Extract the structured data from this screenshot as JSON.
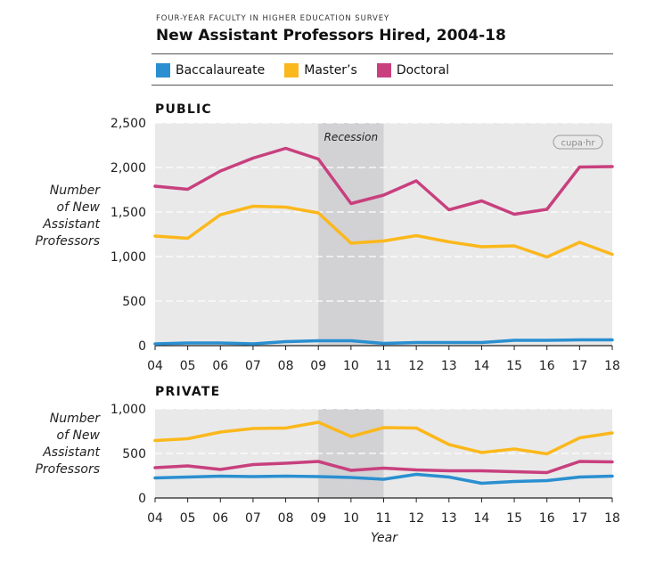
{
  "header": {
    "supertitle": "FOUR-YEAR FACULTY IN HIGHER EDUCATION SURVEY",
    "title": "New Assistant Professors Hired, 2004-18"
  },
  "legend": [
    {
      "label": "Baccalaureate",
      "color": "#2a8fd0"
    },
    {
      "label": "Master’s",
      "color": "#fbb81c"
    },
    {
      "label": "Doctoral",
      "color": "#c8407e"
    }
  ],
  "logo_text": "cupa·hr",
  "recession_label": "Recession",
  "ylabel_lines": [
    "Number",
    "of New",
    "Assistant",
    "Professors"
  ],
  "xlabel": "Year",
  "chart_data": [
    {
      "type": "line",
      "title": "PUBLIC",
      "x": [
        "04",
        "05",
        "06",
        "07",
        "08",
        "09",
        "10",
        "11",
        "12",
        "13",
        "14",
        "15",
        "16",
        "17",
        "18"
      ],
      "ylim": [
        0,
        2500
      ],
      "yticks": [
        "0",
        "500",
        "1,000",
        "1,500",
        "2,000",
        "2,500"
      ],
      "ytick_values": [
        0,
        500,
        1000,
        1500,
        2000,
        2500
      ],
      "shaded_range": [
        "09",
        "11"
      ],
      "series": [
        {
          "name": "Baccalaureate",
          "color": "#2a8fd0",
          "values": [
            20,
            30,
            30,
            20,
            45,
            55,
            55,
            25,
            35,
            35,
            35,
            60,
            60,
            65,
            65
          ]
        },
        {
          "name": "Master’s",
          "color": "#fbb81c",
          "values": [
            1230,
            1205,
            1470,
            1565,
            1555,
            1490,
            1150,
            1175,
            1235,
            1165,
            1110,
            1120,
            995,
            1160,
            1025
          ]
        },
        {
          "name": "Doctoral",
          "color": "#c8407e",
          "values": [
            1790,
            1755,
            1960,
            2105,
            2215,
            2095,
            1595,
            1690,
            1850,
            1525,
            1625,
            1475,
            1530,
            2005,
            2010
          ]
        }
      ]
    },
    {
      "type": "line",
      "title": "PRIVATE",
      "x": [
        "04",
        "05",
        "06",
        "07",
        "08",
        "09",
        "10",
        "11",
        "12",
        "13",
        "14",
        "15",
        "16",
        "17",
        "18"
      ],
      "ylim": [
        0,
        1000
      ],
      "yticks": [
        "0",
        "500",
        "1,000"
      ],
      "ytick_values": [
        0,
        500,
        1000
      ],
      "shaded_range": [
        "09",
        "11"
      ],
      "series": [
        {
          "name": "Baccalaureate",
          "color": "#2a8fd0",
          "values": [
            225,
            235,
            245,
            240,
            245,
            240,
            230,
            210,
            265,
            235,
            165,
            185,
            195,
            235,
            245
          ]
        },
        {
          "name": "Master’s",
          "color": "#fbb81c",
          "values": [
            645,
            665,
            740,
            780,
            785,
            850,
            690,
            790,
            785,
            600,
            510,
            550,
            495,
            675,
            730
          ]
        },
        {
          "name": "Doctoral",
          "color": "#c8407e",
          "values": [
            340,
            360,
            320,
            375,
            390,
            410,
            310,
            335,
            315,
            305,
            305,
            295,
            285,
            410,
            405
          ]
        }
      ]
    }
  ]
}
